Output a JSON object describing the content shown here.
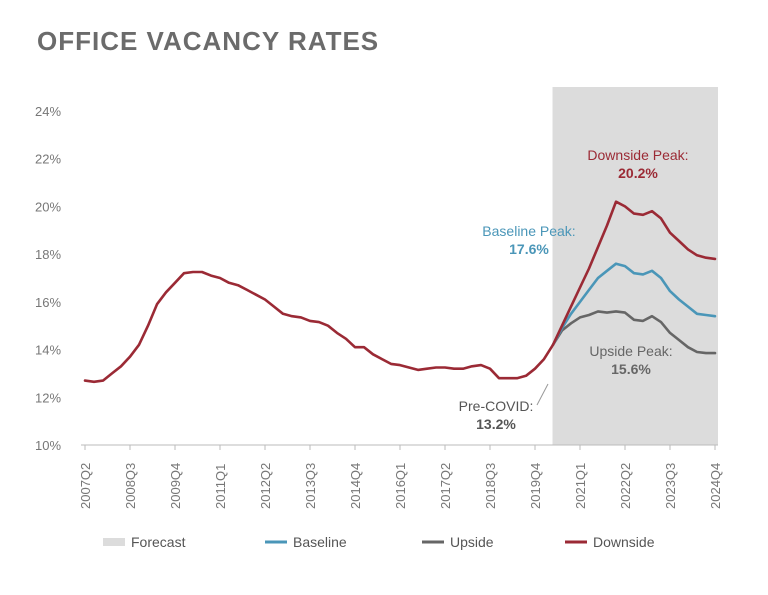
{
  "chart_data": {
    "type": "line",
    "title": "OFFICE VACANCY RATES",
    "xlabel": "",
    "ylabel": "",
    "ylim": [
      10,
      24
    ],
    "y_ticks": [
      "10%",
      "12%",
      "14%",
      "16%",
      "18%",
      "20%",
      "22%",
      "24%"
    ],
    "y_tick_values": [
      10,
      12,
      14,
      16,
      18,
      20,
      22,
      24
    ],
    "x_ticks": [
      "2007Q2",
      "2008Q3",
      "2009Q4",
      "2011Q1",
      "2012Q2",
      "2013Q3",
      "2014Q4",
      "2016Q1",
      "2017Q2",
      "2018Q3",
      "2019Q4",
      "2021Q1",
      "2022Q2",
      "2023Q3",
      "2024Q4"
    ],
    "x_range": [
      "2007Q2",
      "2024Q4"
    ],
    "forecast_start": "2020Q2",
    "forecast_end": "2024Q4",
    "grid": false,
    "legend_position": "bottom",
    "series": [
      {
        "name": "Downside",
        "color": "#9b2a35",
        "points": [
          [
            "2007Q2",
            12.7
          ],
          [
            "2007Q3",
            12.65
          ],
          [
            "2007Q4",
            12.7
          ],
          [
            "2008Q1",
            13.0
          ],
          [
            "2008Q2",
            13.3
          ],
          [
            "2008Q3",
            13.7
          ],
          [
            "2008Q4",
            14.2
          ],
          [
            "2009Q1",
            15.0
          ],
          [
            "2009Q2",
            15.9
          ],
          [
            "2009Q3",
            16.4
          ],
          [
            "2009Q4",
            16.8
          ],
          [
            "2010Q1",
            17.2
          ],
          [
            "2010Q2",
            17.25
          ],
          [
            "2010Q3",
            17.25
          ],
          [
            "2010Q4",
            17.1
          ],
          [
            "2011Q1",
            17.0
          ],
          [
            "2011Q2",
            16.8
          ],
          [
            "2011Q3",
            16.7
          ],
          [
            "2011Q4",
            16.5
          ],
          [
            "2012Q1",
            16.3
          ],
          [
            "2012Q2",
            16.1
          ],
          [
            "2012Q3",
            15.8
          ],
          [
            "2012Q4",
            15.5
          ],
          [
            "2013Q1",
            15.4
          ],
          [
            "2013Q2",
            15.35
          ],
          [
            "2013Q3",
            15.2
          ],
          [
            "2013Q4",
            15.15
          ],
          [
            "2014Q1",
            15.0
          ],
          [
            "2014Q2",
            14.7
          ],
          [
            "2014Q3",
            14.45
          ],
          [
            "2014Q4",
            14.1
          ],
          [
            "2015Q1",
            14.1
          ],
          [
            "2015Q2",
            13.8
          ],
          [
            "2015Q3",
            13.6
          ],
          [
            "2015Q4",
            13.4
          ],
          [
            "2016Q1",
            13.35
          ],
          [
            "2016Q2",
            13.25
          ],
          [
            "2016Q3",
            13.15
          ],
          [
            "2016Q4",
            13.2
          ],
          [
            "2017Q1",
            13.25
          ],
          [
            "2017Q2",
            13.25
          ],
          [
            "2017Q3",
            13.2
          ],
          [
            "2017Q4",
            13.2
          ],
          [
            "2018Q1",
            13.3
          ],
          [
            "2018Q2",
            13.35
          ],
          [
            "2018Q3",
            13.2
          ],
          [
            "2018Q4",
            12.8
          ],
          [
            "2019Q1",
            12.8
          ],
          [
            "2019Q2",
            12.8
          ],
          [
            "2019Q3",
            12.9
          ],
          [
            "2019Q4",
            13.2
          ],
          [
            "2020Q1",
            13.6
          ],
          [
            "2020Q2",
            14.2
          ],
          [
            "2020Q3",
            15.0
          ],
          [
            "2020Q4",
            15.8
          ],
          [
            "2021Q1",
            16.6
          ],
          [
            "2021Q2",
            17.4
          ],
          [
            "2021Q3",
            18.3
          ],
          [
            "2021Q4",
            19.2
          ],
          [
            "2022Q1",
            20.2
          ],
          [
            "2022Q2",
            20.0
          ],
          [
            "2022Q3",
            19.7
          ],
          [
            "2022Q4",
            19.65
          ],
          [
            "2023Q1",
            19.8
          ],
          [
            "2023Q2",
            19.5
          ],
          [
            "2023Q3",
            18.9
          ],
          [
            "2023Q4",
            18.55
          ],
          [
            "2024Q1",
            18.2
          ],
          [
            "2024Q2",
            17.95
          ],
          [
            "2024Q3",
            17.85
          ],
          [
            "2024Q4",
            17.8
          ]
        ]
      },
      {
        "name": "Baseline",
        "color": "#4a96b8",
        "points": [
          [
            "2020Q2",
            14.2
          ],
          [
            "2020Q3",
            14.9
          ],
          [
            "2020Q4",
            15.5
          ],
          [
            "2021Q1",
            16.0
          ],
          [
            "2021Q2",
            16.5
          ],
          [
            "2021Q3",
            17.0
          ],
          [
            "2021Q4",
            17.3
          ],
          [
            "2022Q1",
            17.6
          ],
          [
            "2022Q2",
            17.5
          ],
          [
            "2022Q3",
            17.2
          ],
          [
            "2022Q4",
            17.15
          ],
          [
            "2023Q1",
            17.3
          ],
          [
            "2023Q2",
            17.0
          ],
          [
            "2023Q3",
            16.45
          ],
          [
            "2023Q4",
            16.1
          ],
          [
            "2024Q1",
            15.8
          ],
          [
            "2024Q2",
            15.5
          ],
          [
            "2024Q3",
            15.45
          ],
          [
            "2024Q4",
            15.4
          ]
        ]
      },
      {
        "name": "Upside",
        "color": "#666666",
        "points": [
          [
            "2020Q2",
            14.2
          ],
          [
            "2020Q3",
            14.8
          ],
          [
            "2020Q4",
            15.1
          ],
          [
            "2021Q1",
            15.35
          ],
          [
            "2021Q2",
            15.45
          ],
          [
            "2021Q3",
            15.6
          ],
          [
            "2021Q4",
            15.55
          ],
          [
            "2022Q1",
            15.6
          ],
          [
            "2022Q2",
            15.55
          ],
          [
            "2022Q3",
            15.25
          ],
          [
            "2022Q4",
            15.2
          ],
          [
            "2023Q1",
            15.4
          ],
          [
            "2023Q2",
            15.15
          ],
          [
            "2023Q3",
            14.7
          ],
          [
            "2023Q4",
            14.4
          ],
          [
            "2024Q1",
            14.1
          ],
          [
            "2024Q2",
            13.9
          ],
          [
            "2024Q3",
            13.85
          ],
          [
            "2024Q4",
            13.85
          ]
        ]
      }
    ],
    "annotations": [
      {
        "key": "downside",
        "label": "Downside Peak:",
        "value": "20.2%",
        "color": "#9b2a35"
      },
      {
        "key": "baseline",
        "label": "Baseline Peak:",
        "value": "17.6%",
        "color": "#4a96b8"
      },
      {
        "key": "upside",
        "label": "Upside Peak:",
        "value": "15.6%",
        "color": "#666666"
      },
      {
        "key": "precovid",
        "label": "Pre-COVID:",
        "value": "13.2%",
        "color": "#555555"
      }
    ],
    "legend": [
      {
        "label": "Forecast",
        "color": "#dcdcdc",
        "kind": "swatch"
      },
      {
        "label": "Baseline",
        "color": "#4a96b8",
        "kind": "line"
      },
      {
        "label": "Upside",
        "color": "#666666",
        "kind": "line"
      },
      {
        "label": "Downside",
        "color": "#9b2a35",
        "kind": "line"
      }
    ]
  }
}
